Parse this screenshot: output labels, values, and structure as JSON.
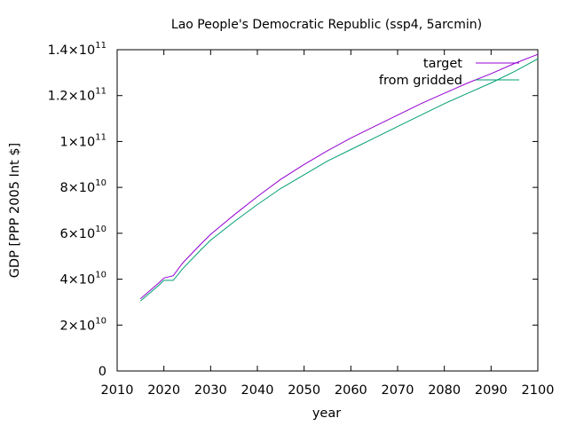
{
  "chart_data": {
    "type": "line",
    "title": "Lao People's Democratic Republic (ssp4, 5arcmin)",
    "xlabel": "year",
    "ylabel": "GDP [PPP 2005 Int $]",
    "xlim": [
      2010,
      2100
    ],
    "ylim": [
      0,
      140000000000
    ],
    "grid": false,
    "legend_position": "top-right",
    "x_ticks": [
      "2010",
      "2020",
      "2030",
      "2040",
      "2050",
      "2060",
      "2070",
      "2080",
      "2090",
      "2100"
    ],
    "y_ticks": [
      {
        "value": 0,
        "mantissa": "0",
        "exponent": ""
      },
      {
        "value": 20000000000,
        "mantissa": "2×10",
        "exponent": "10"
      },
      {
        "value": 40000000000,
        "mantissa": "4×10",
        "exponent": "10"
      },
      {
        "value": 60000000000,
        "mantissa": "6×10",
        "exponent": "10"
      },
      {
        "value": 80000000000,
        "mantissa": "8×10",
        "exponent": "10"
      },
      {
        "value": 100000000000,
        "mantissa": "1×10",
        "exponent": "11"
      },
      {
        "value": 120000000000,
        "mantissa": "1.2×10",
        "exponent": "11"
      },
      {
        "value": 140000000000,
        "mantissa": "1.4×10",
        "exponent": "11"
      }
    ],
    "series": [
      {
        "name": "target",
        "color": "#9400d3",
        "x": [
          2015,
          2019,
          2020,
          2022,
          2024,
          2028,
          2030,
          2035,
          2040,
          2045,
          2050,
          2055,
          2060,
          2065,
          2070,
          2075,
          2080,
          2085,
          2090,
          2095,
          2100
        ],
        "y": [
          31500000000,
          38500000000,
          40500000000,
          41500000000,
          47000000000,
          55500000000,
          59500000000,
          68000000000,
          76000000000,
          83500000000,
          90000000000,
          96000000000,
          101500000000,
          106500000000,
          111500000000,
          116500000000,
          121000000000,
          125500000000,
          129500000000,
          134000000000,
          138000000000
        ]
      },
      {
        "name": "from gridded",
        "color": "#009e73",
        "x": [
          2015,
          2019,
          2020,
          2022,
          2024,
          2028,
          2030,
          2035,
          2040,
          2045,
          2050,
          2055,
          2060,
          2065,
          2070,
          2075,
          2080,
          2085,
          2090,
          2095,
          2100
        ],
        "y": [
          30500000000,
          37500000000,
          39500000000,
          39500000000,
          44500000000,
          53000000000,
          57000000000,
          65000000000,
          72500000000,
          79500000000,
          85500000000,
          91500000000,
          96500000000,
          101500000000,
          106500000000,
          111500000000,
          116500000000,
          121000000000,
          125500000000,
          130500000000,
          136000000000
        ]
      }
    ]
  }
}
